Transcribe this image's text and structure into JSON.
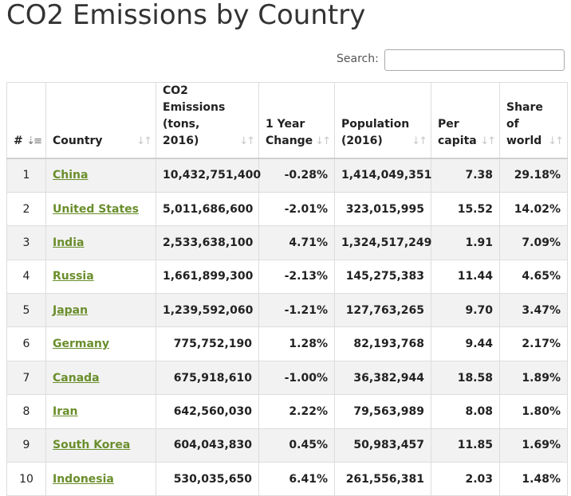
{
  "title": "CO2 Emissions by Country",
  "search": {
    "label": "Search:",
    "value": "",
    "placeholder": ""
  },
  "table": {
    "headers": [
      {
        "label": "#"
      },
      {
        "label": "Country"
      },
      {
        "label": "CO2 Emissions (tons, 2016)"
      },
      {
        "label": "1 Year Change"
      },
      {
        "label": "Population (2016)"
      },
      {
        "label": "Per capita"
      },
      {
        "label": "Share of world"
      }
    ],
    "sort_icons": {
      "active": "sort-amount-down-icon",
      "inactive": "sort-arrows-icon"
    },
    "rows": [
      {
        "rank": "1",
        "country": "China",
        "emissions": "10,432,751,400",
        "change": "-0.28%",
        "population": "1,414,049,351",
        "per_capita": "7.38",
        "share": "29.18%"
      },
      {
        "rank": "2",
        "country": "United States",
        "emissions": "5,011,686,600",
        "change": "-2.01%",
        "population": "323,015,995",
        "per_capita": "15.52",
        "share": "14.02%"
      },
      {
        "rank": "3",
        "country": "India",
        "emissions": "2,533,638,100",
        "change": "4.71%",
        "population": "1,324,517,249",
        "per_capita": "1.91",
        "share": "7.09%"
      },
      {
        "rank": "4",
        "country": "Russia",
        "emissions": "1,661,899,300",
        "change": "-2.13%",
        "population": "145,275,383",
        "per_capita": "11.44",
        "share": "4.65%"
      },
      {
        "rank": "5",
        "country": "Japan",
        "emissions": "1,239,592,060",
        "change": "-1.21%",
        "population": "127,763,265",
        "per_capita": "9.70",
        "share": "3.47%"
      },
      {
        "rank": "6",
        "country": "Germany",
        "emissions": "775,752,190",
        "change": "1.28%",
        "population": "82,193,768",
        "per_capita": "9.44",
        "share": "2.17%"
      },
      {
        "rank": "7",
        "country": "Canada",
        "emissions": "675,918,610",
        "change": "-1.00%",
        "population": "36,382,944",
        "per_capita": "18.58",
        "share": "1.89%"
      },
      {
        "rank": "8",
        "country": "Iran",
        "emissions": "642,560,030",
        "change": "2.22%",
        "population": "79,563,989",
        "per_capita": "8.08",
        "share": "1.80%"
      },
      {
        "rank": "9",
        "country": "South Korea",
        "emissions": "604,043,830",
        "change": "0.45%",
        "population": "50,983,457",
        "per_capita": "11.85",
        "share": "1.69%"
      },
      {
        "rank": "10",
        "country": "Indonesia",
        "emissions": "530,035,650",
        "change": "6.41%",
        "population": "261,556,381",
        "per_capita": "2.03",
        "share": "1.48%"
      }
    ]
  },
  "colors": {
    "link": "#6a8e2c",
    "stripe": "#f2f2f2",
    "border": "#dddddd"
  }
}
